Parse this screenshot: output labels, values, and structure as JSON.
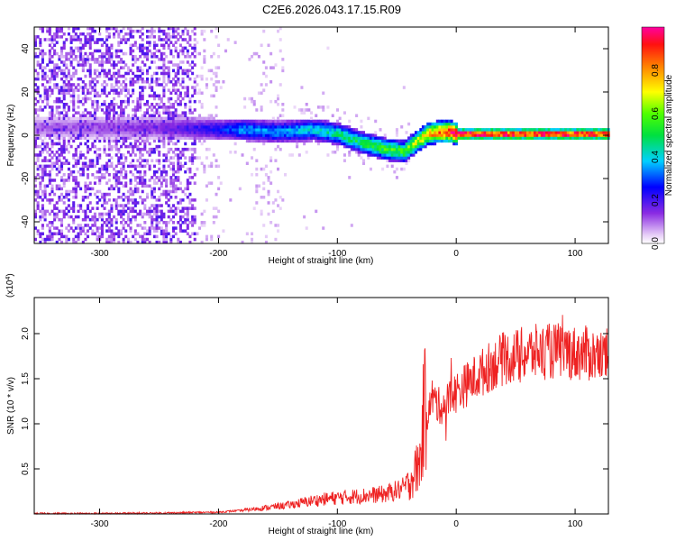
{
  "figure": {
    "title": "C2E6.2026.043.17.15.R09"
  },
  "chart_data": [
    {
      "type": "heatmap",
      "title": "C2E6.2026.043.17.15.R09",
      "xlabel": "Height of straight line (km)",
      "ylabel": "Frequency (Hz)",
      "xlim": [
        -355,
        128
      ],
      "ylim": [
        -50,
        50
      ],
      "x_ticks": [
        -300,
        -200,
        -100,
        0,
        100
      ],
      "y_ticks": [
        -40,
        -20,
        0,
        20,
        40
      ],
      "grid": false,
      "colorbar": {
        "label": "Normalized spectral amplitude",
        "range": [
          0,
          1
        ],
        "ticks": [
          0.0,
          0.2,
          0.4,
          0.6,
          0.8
        ]
      },
      "ridge": {
        "x": [
          -350,
          -300,
          -250,
          -200,
          -180,
          -150,
          -120,
          -100,
          -80,
          -60,
          -45,
          -35,
          -25,
          -15,
          -5,
          0,
          20,
          50,
          80,
          100,
          128
        ],
        "frequency": [
          3,
          3,
          3,
          2,
          2,
          1,
          2,
          0,
          -4,
          -7,
          -8,
          -4,
          0,
          1,
          1,
          0,
          0,
          0,
          0,
          0,
          0
        ],
        "amplitude": [
          0.1,
          0.12,
          0.15,
          0.25,
          0.35,
          0.35,
          0.4,
          0.45,
          0.5,
          0.55,
          0.55,
          0.65,
          0.75,
          0.85,
          0.9,
          0.95,
          0.95,
          0.95,
          0.95,
          0.95,
          0.95
        ]
      }
    },
    {
      "type": "line",
      "xlabel": "Height of straight line (km)",
      "ylabel": "SNR (10 * v/v)",
      "y_multiplier": "(x10",
      "y_multiplier_exp": "4",
      "y_multiplier_close": ")",
      "xlim": [
        -355,
        128
      ],
      "ylim": [
        0,
        2.4
      ],
      "x_ticks": [
        -300,
        -200,
        -100,
        0,
        100
      ],
      "y_ticks": [
        0.5,
        1.0,
        1.5,
        2.0
      ],
      "grid": false,
      "series": [
        {
          "color": "#ee2222",
          "x": [
            -355,
            -300,
            -250,
            -200,
            -180,
            -160,
            -140,
            -120,
            -100,
            -80,
            -60,
            -45,
            -40,
            -35,
            -30,
            -27,
            -24,
            -20,
            -15,
            -10,
            -5,
            0,
            10,
            20,
            30,
            40,
            50,
            60,
            70,
            80,
            90,
            100,
            110,
            120,
            128
          ],
          "y": [
            0.005,
            0.005,
            0.01,
            0.02,
            0.04,
            0.07,
            0.1,
            0.15,
            0.18,
            0.2,
            0.22,
            0.28,
            0.35,
            0.45,
            0.6,
            1.2,
            1.1,
            1.3,
            1.2,
            1.2,
            1.3,
            1.35,
            1.45,
            1.55,
            1.65,
            1.72,
            1.75,
            1.78,
            1.8,
            1.8,
            1.82,
            1.78,
            1.78,
            1.75,
            1.75
          ]
        }
      ]
    }
  ]
}
